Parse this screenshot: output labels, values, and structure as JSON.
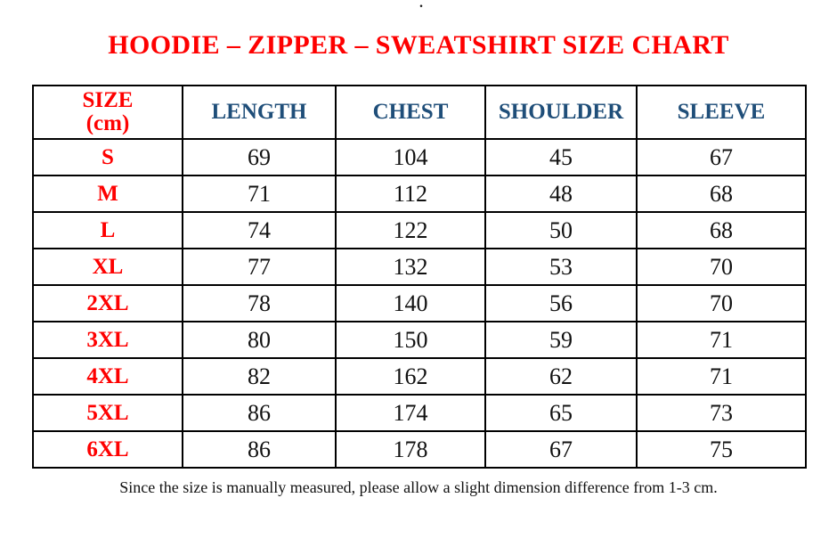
{
  "page": {
    "stray_dot": ".",
    "title": "HOODIE – ZIPPER – SWEATSHIRT SIZE CHART",
    "footnote": "Since the size is manually measured, please allow a slight dimension difference from 1-3 cm."
  },
  "colors": {
    "title_red": "#FE0000",
    "size_label_red": "#FE0000",
    "header_blue": "#1F4E79",
    "number_black": "#111111",
    "border_black": "#000000",
    "background_white": "#FFFFFF"
  },
  "table": {
    "headers": {
      "size": "SIZE\n(cm)",
      "length": "LENGTH",
      "chest": "CHEST",
      "shoulder": "SHOULDER",
      "sleeve": "SLEEVE"
    },
    "rows": [
      {
        "size": "S",
        "length": "69",
        "chest": "104",
        "shoulder": "45",
        "sleeve": "67"
      },
      {
        "size": "M",
        "length": "71",
        "chest": "112",
        "shoulder": "48",
        "sleeve": "68"
      },
      {
        "size": "L",
        "length": "74",
        "chest": "122",
        "shoulder": "50",
        "sleeve": "68"
      },
      {
        "size": "XL",
        "length": "77",
        "chest": "132",
        "shoulder": "53",
        "sleeve": "70"
      },
      {
        "size": "2XL",
        "length": "78",
        "chest": "140",
        "shoulder": "56",
        "sleeve": "70"
      },
      {
        "size": "3XL",
        "length": "80",
        "chest": "150",
        "shoulder": "59",
        "sleeve": "71"
      },
      {
        "size": "4XL",
        "length": "82",
        "chest": "162",
        "shoulder": "62",
        "sleeve": "71"
      },
      {
        "size": "5XL",
        "length": "86",
        "chest": "174",
        "shoulder": "65",
        "sleeve": "73"
      },
      {
        "size": "6XL",
        "length": "86",
        "chest": "178",
        "shoulder": "67",
        "sleeve": "75"
      }
    ]
  }
}
